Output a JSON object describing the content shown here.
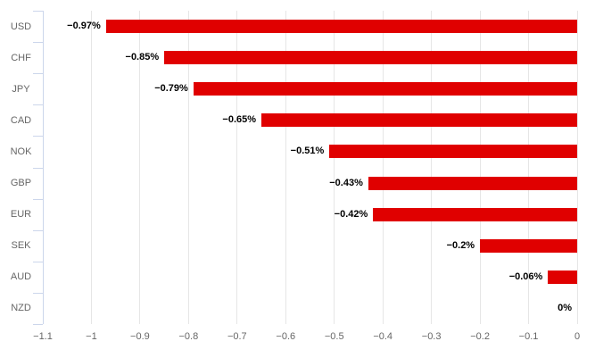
{
  "chart_meta": {
    "bar_color": "#e00000",
    "grid_color": "#e6e6e6",
    "axis_line_color": "#ccd6eb",
    "category_label_color": "#666666",
    "tick_label_color": "#666666",
    "data_label_color": "#000000",
    "background_color": "#ffffff"
  },
  "chart_data": {
    "type": "bar",
    "orientation": "horizontal",
    "title": "",
    "xlabel": "",
    "ylabel": "",
    "categories": [
      "USD",
      "CHF",
      "JPY",
      "CAD",
      "NOK",
      "GBP",
      "EUR",
      "SEK",
      "AUD",
      "NZD"
    ],
    "values": [
      -0.97,
      -0.85,
      -0.79,
      -0.65,
      -0.51,
      -0.43,
      -0.42,
      -0.2,
      -0.06,
      0
    ],
    "data_labels": [
      "−0.97%",
      "−0.85%",
      "−0.79%",
      "−0.65%",
      "−0.51%",
      "−0.43%",
      "−0.42%",
      "−0.2%",
      "−0.06%",
      "0%"
    ],
    "xlim": [
      -1.1,
      0
    ],
    "x_ticks": [
      -1.1,
      -1,
      -0.9,
      -0.8,
      -0.7,
      -0.6,
      -0.5,
      -0.4,
      -0.3,
      -0.2,
      -0.1,
      0
    ],
    "x_tick_labels": [
      "−1.1",
      "−1",
      "−0.9",
      "−0.8",
      "−0.7",
      "−0.6",
      "−0.5",
      "−0.4",
      "−0.3",
      "−0.2",
      "−0.1",
      "0"
    ],
    "grid": true,
    "legend": false
  }
}
